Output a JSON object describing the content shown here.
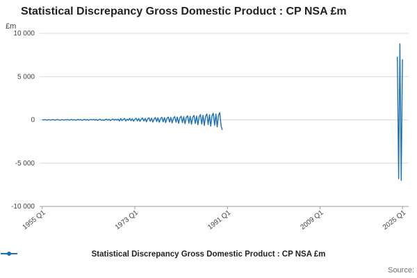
{
  "page": {
    "title": "Statistical Discrepancy Gross Domestic Product : CP NSA £m",
    "unit_label": "£m",
    "source_label": "Source:"
  },
  "chart_data": {
    "type": "line",
    "title": "Statistical Discrepancy Gross Domestic Product : CP NSA £m",
    "xlabel": "",
    "ylabel": "£m",
    "x_range": [
      1954.5,
      2026.2
    ],
    "ylim": [
      -10000,
      10000
    ],
    "grid": "horizontal",
    "legend_position": "bottom",
    "line_color": "#1d70b8",
    "yticks": [
      {
        "value": 10000,
        "label": "10 000"
      },
      {
        "value": 5000,
        "label": "5 000"
      },
      {
        "value": 0,
        "label": "0"
      },
      {
        "value": -5000,
        "label": "-5 000"
      },
      {
        "value": -10000,
        "label": "-10 000"
      }
    ],
    "xticks": [
      {
        "value": 1955,
        "label": "1955 Q1"
      },
      {
        "value": 1973,
        "label": "1973 Q1"
      },
      {
        "value": 1991,
        "label": "1991 Q1"
      },
      {
        "value": 2009,
        "label": "2009 Q1"
      },
      {
        "value": 2025,
        "label": "2025 Q1"
      }
    ],
    "series": [
      {
        "name": "Statistical Discrepancy Gross Domestic Product : CP NSA £m",
        "segments": [
          {
            "start": 1955.0,
            "step": 0.25,
            "values": [
              25,
              -15,
              35,
              5,
              -30,
              40,
              0,
              -20,
              30,
              15,
              -35,
              20,
              45,
              -10,
              -40,
              30,
              10,
              -25,
              35,
              -15,
              40,
              -30,
              15,
              55,
              -25,
              35,
              -50,
              10,
              60,
              -15,
              30,
              -45,
              20,
              70,
              -30,
              45,
              -55,
              15,
              50,
              -20,
              75,
              -40,
              55,
              -65,
              30,
              85,
              -45,
              25,
              -70,
              50,
              90,
              -30,
              65,
              -80,
              40,
              100,
              -50,
              70,
              -35,
              85,
              -120,
              150,
              -80,
              60,
              170,
              -130,
              90,
              -60,
              180,
              -100,
              140,
              -150,
              70,
              200,
              -120,
              160,
              -180,
              100,
              220,
              -140,
              180,
              -220,
              130,
              250,
              -160,
              200,
              -260,
              120,
              280,
              -190,
              240,
              -280,
              150,
              300,
              -230,
              270,
              -310,
              180,
              330,
              -250,
              290,
              -350,
              220,
              380,
              -280,
              330,
              -400,
              250,
              420,
              -320,
              370,
              -450,
              280,
              480,
              -380,
              420,
              -500,
              310,
              520,
              -420,
              460,
              -560,
              380,
              600,
              -480,
              540,
              -640,
              420,
              680,
              -540,
              600,
              -720,
              480,
              760,
              -620,
              680,
              -820,
              540,
              840,
              -680,
              -1150
            ]
          },
          {
            "start": 2024.0,
            "step": 0.25,
            "values": [
              7300,
              -6800,
              8800,
              -7000,
              7000
            ]
          }
        ]
      }
    ]
  }
}
